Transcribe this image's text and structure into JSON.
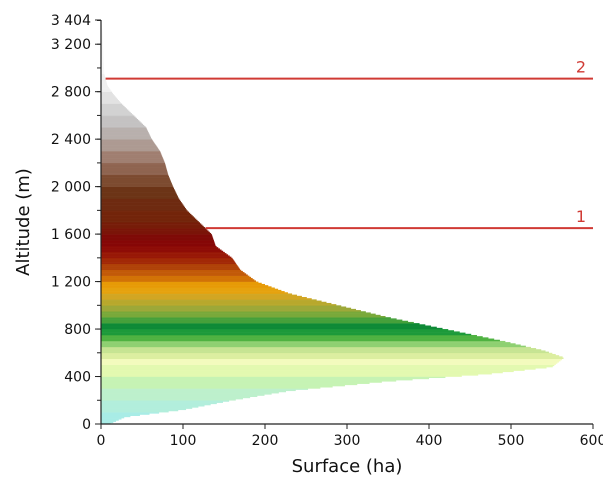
{
  "chart_data": {
    "type": "bar",
    "orientation": "horizontal",
    "title": "",
    "xlabel": "Surface (ha)",
    "ylabel": "Altitude (m)",
    "xlim": [
      0,
      600
    ],
    "ylim": [
      0,
      3404
    ],
    "x_ticks": [
      0,
      100,
      200,
      300,
      400,
      500,
      600
    ],
    "x_tick_labels": [
      "0",
      "100",
      "200",
      "300",
      "400",
      "500",
      "600"
    ],
    "y_ticks": [
      0,
      400,
      800,
      1200,
      1600,
      2000,
      2400,
      2800,
      3200,
      3404
    ],
    "y_tick_labels": [
      "0",
      "400",
      "800",
      "1 200",
      "1 600",
      "2 000",
      "2 400",
      "2 800",
      "3 200",
      "3 404"
    ],
    "grid": false,
    "profile_points": [
      {
        "altitude": 0,
        "surface": 10
      },
      {
        "altitude": 60,
        "surface": 30
      },
      {
        "altitude": 120,
        "surface": 100
      },
      {
        "altitude": 200,
        "surface": 160
      },
      {
        "altitude": 280,
        "surface": 230
      },
      {
        "altitude": 360,
        "surface": 350
      },
      {
        "altitude": 420,
        "surface": 470
      },
      {
        "altitude": 480,
        "surface": 550
      },
      {
        "altitude": 560,
        "surface": 565
      },
      {
        "altitude": 620,
        "surface": 540
      },
      {
        "altitude": 700,
        "surface": 490
      },
      {
        "altitude": 800,
        "surface": 420
      },
      {
        "altitude": 900,
        "surface": 350
      },
      {
        "altitude": 1000,
        "surface": 290
      },
      {
        "altitude": 1100,
        "surface": 230
      },
      {
        "altitude": 1200,
        "surface": 190
      },
      {
        "altitude": 1300,
        "surface": 170
      },
      {
        "altitude": 1400,
        "surface": 160
      },
      {
        "altitude": 1500,
        "surface": 140
      },
      {
        "altitude": 1600,
        "surface": 135
      },
      {
        "altitude": 1700,
        "surface": 120
      },
      {
        "altitude": 1800,
        "surface": 105
      },
      {
        "altitude": 1900,
        "surface": 95
      },
      {
        "altitude": 2000,
        "surface": 88
      },
      {
        "altitude": 2100,
        "surface": 82
      },
      {
        "altitude": 2200,
        "surface": 78
      },
      {
        "altitude": 2300,
        "surface": 72
      },
      {
        "altitude": 2400,
        "surface": 62
      },
      {
        "altitude": 2500,
        "surface": 55
      },
      {
        "altitude": 2600,
        "surface": 40
      },
      {
        "altitude": 2700,
        "surface": 25
      },
      {
        "altitude": 2780,
        "surface": 15
      },
      {
        "altitude": 2850,
        "surface": 8
      },
      {
        "altitude": 2950,
        "surface": 4
      },
      {
        "altitude": 3100,
        "surface": 3
      },
      {
        "altitude": 3300,
        "surface": 2
      },
      {
        "altitude": 3404,
        "surface": 0
      }
    ],
    "color_bands": [
      {
        "from": 0,
        "to": 100,
        "color": "#a8ece6"
      },
      {
        "from": 100,
        "to": 200,
        "color": "#b2eedc"
      },
      {
        "from": 200,
        "to": 300,
        "color": "#bdf0cc"
      },
      {
        "from": 300,
        "to": 400,
        "color": "#c6f3b4"
      },
      {
        "from": 400,
        "to": 500,
        "color": "#e3f9b0"
      },
      {
        "from": 500,
        "to": 550,
        "color": "#f3fbbd"
      },
      {
        "from": 550,
        "to": 600,
        "color": "#dceea0"
      },
      {
        "from": 600,
        "to": 650,
        "color": "#c6e492"
      },
      {
        "from": 650,
        "to": 700,
        "color": "#8ed071"
      },
      {
        "from": 700,
        "to": 750,
        "color": "#4fb241"
      },
      {
        "from": 750,
        "to": 800,
        "color": "#1d9a3a"
      },
      {
        "from": 800,
        "to": 850,
        "color": "#0e8a37"
      },
      {
        "from": 850,
        "to": 900,
        "color": "#46a03b"
      },
      {
        "from": 900,
        "to": 950,
        "color": "#79a93a"
      },
      {
        "from": 950,
        "to": 1000,
        "color": "#9da838"
      },
      {
        "from": 1000,
        "to": 1050,
        "color": "#b8a82c"
      },
      {
        "from": 1050,
        "to": 1100,
        "color": "#d2a623"
      },
      {
        "from": 1100,
        "to": 1150,
        "color": "#e6a20e"
      },
      {
        "from": 1150,
        "to": 1200,
        "color": "#e79a07"
      },
      {
        "from": 1200,
        "to": 1250,
        "color": "#d27306"
      },
      {
        "from": 1250,
        "to": 1300,
        "color": "#c25a09"
      },
      {
        "from": 1300,
        "to": 1350,
        "color": "#b04208"
      },
      {
        "from": 1350,
        "to": 1400,
        "color": "#a22807"
      },
      {
        "from": 1400,
        "to": 1450,
        "color": "#981806"
      },
      {
        "from": 1450,
        "to": 1500,
        "color": "#8e0c06"
      },
      {
        "from": 1500,
        "to": 1550,
        "color": "#860706"
      },
      {
        "from": 1550,
        "to": 1600,
        "color": "#7f0a07"
      },
      {
        "from": 1600,
        "to": 1650,
        "color": "#7a1508"
      },
      {
        "from": 1650,
        "to": 1700,
        "color": "#771d09"
      },
      {
        "from": 1700,
        "to": 1800,
        "color": "#73250a"
      },
      {
        "from": 1800,
        "to": 1900,
        "color": "#6e2a10"
      },
      {
        "from": 1900,
        "to": 2000,
        "color": "#6c3417"
      },
      {
        "from": 2000,
        "to": 2100,
        "color": "#7d4b30"
      },
      {
        "from": 2100,
        "to": 2200,
        "color": "#8f6450"
      },
      {
        "from": 2200,
        "to": 2300,
        "color": "#a07f71"
      },
      {
        "from": 2300,
        "to": 2400,
        "color": "#ad9a92"
      },
      {
        "from": 2400,
        "to": 2500,
        "color": "#b8b0ad"
      },
      {
        "from": 2500,
        "to": 2600,
        "color": "#c4c2c2"
      },
      {
        "from": 2600,
        "to": 2700,
        "color": "#d2d2d2"
      },
      {
        "from": 2700,
        "to": 2800,
        "color": "#e2e2e2"
      },
      {
        "from": 2800,
        "to": 2950,
        "color": "#efefef"
      },
      {
        "from": 2950,
        "to": 3404,
        "color": "#f7f7f7"
      }
    ],
    "reference_lines": [
      {
        "label": "1",
        "altitude": 1650,
        "color": "#d03a34"
      },
      {
        "label": "2",
        "altitude": 2910,
        "color": "#d03a34"
      }
    ]
  }
}
